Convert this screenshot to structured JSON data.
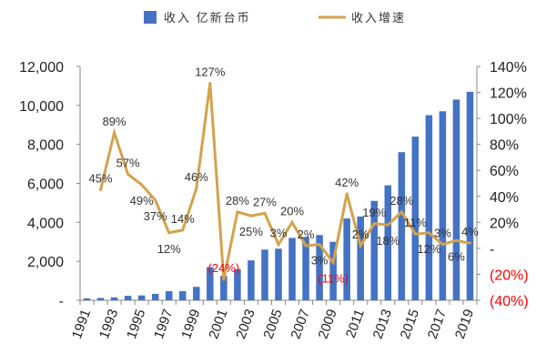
{
  "chart_data": {
    "type": "bar+line",
    "categories": [
      "1991",
      "1992",
      "1993",
      "1994",
      "1995",
      "1996",
      "1997",
      "1998",
      "1999",
      "2000",
      "2001",
      "2002",
      "2003",
      "2004",
      "2005",
      "2006",
      "2007",
      "2008",
      "2009",
      "2010",
      "2011",
      "2012",
      "2013",
      "2014",
      "2015",
      "2016",
      "2017",
      "2018",
      "2019"
    ],
    "x_tick_labels": [
      "1991",
      "1993",
      "1995",
      "1997",
      "1999",
      "2001",
      "2003",
      "2005",
      "2007",
      "2009",
      "2011",
      "2013",
      "2015",
      "2017",
      "2019"
    ],
    "series": [
      {
        "name": "收入 亿新台币",
        "type": "bar",
        "axis": "left",
        "color": "#4472C4",
        "values": [
          100,
          120,
          150,
          230,
          250,
          330,
          470,
          470,
          690,
          1700,
          1250,
          1600,
          2050,
          2600,
          2650,
          3200,
          3250,
          3350,
          3000,
          4200,
          4300,
          5100,
          5900,
          7600,
          8400,
          9500,
          9700,
          10300,
          10700
        ]
      },
      {
        "name": "收入增速",
        "type": "line",
        "axis": "right",
        "color": "#D4A24C",
        "values": [
          null,
          45,
          89,
          57,
          49,
          37,
          12,
          14,
          46,
          127,
          -24,
          28,
          25,
          27,
          3,
          20,
          2,
          3,
          -11,
          42,
          2,
          19,
          18,
          28,
          11,
          12,
          3,
          6,
          4
        ],
        "labels": [
          "",
          "45%",
          "89%",
          "57%",
          "49%",
          "37%",
          "12%",
          "14%",
          "46%",
          "127%",
          "(24%)",
          "28%",
          "25%",
          "27%",
          "3%",
          "20%",
          "2%",
          "3%",
          "(11%)",
          "42%",
          "2%",
          "19%",
          "18%",
          "28%",
          "11%",
          "12%",
          "3%",
          "6%",
          "4%"
        ]
      }
    ],
    "y_left": {
      "range": [
        0,
        12000
      ],
      "ticks": [
        "-",
        "2,000",
        "4,000",
        "6,000",
        "8,000",
        "10,000",
        "12,000"
      ]
    },
    "y_right": {
      "range": [
        -40,
        140
      ],
      "ticks": [
        "(40%)",
        "(20%)",
        "-",
        "20%",
        "40%",
        "60%",
        "80%",
        "100%",
        "120%",
        "140%"
      ]
    },
    "negative_label_color": "#FF0000",
    "legend_placement": "top",
    "grid": false
  }
}
